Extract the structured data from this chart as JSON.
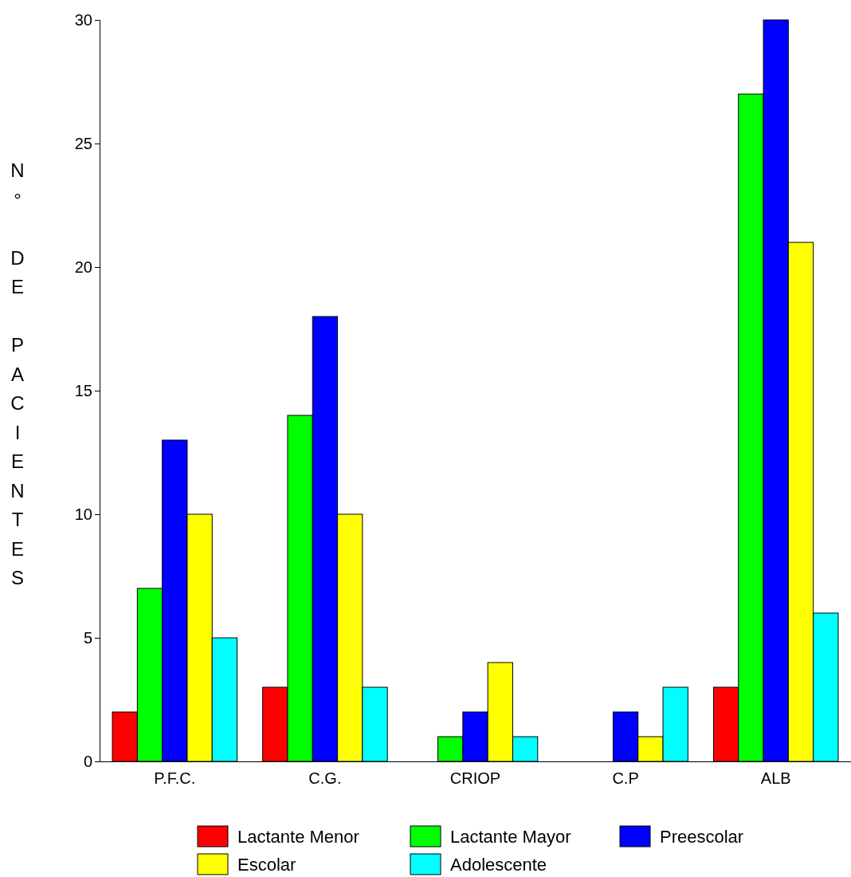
{
  "chart_data": {
    "type": "bar",
    "ylabel": "N° DE PACIENTES",
    "categories": [
      "P.F.C.",
      "C.G.",
      "CRIOP",
      "C.P",
      "ALB"
    ],
    "series": [
      {
        "name": "Lactante Menor",
        "color": "#ff0000",
        "values": [
          2,
          3,
          0,
          0,
          3
        ]
      },
      {
        "name": "Lactante Mayor",
        "color": "#00ff00",
        "values": [
          7,
          14,
          1,
          0,
          27
        ]
      },
      {
        "name": "Preescolar",
        "color": "#0000ff",
        "values": [
          13,
          18,
          2,
          2,
          30
        ]
      },
      {
        "name": "Escolar",
        "color": "#ffff00",
        "values": [
          10,
          10,
          4,
          1,
          21
        ]
      },
      {
        "name": "Adolescente",
        "color": "#00ffff",
        "values": [
          5,
          3,
          1,
          3,
          6
        ]
      }
    ],
    "ylim": [
      0,
      30
    ],
    "yticks": [
      0,
      5,
      10,
      15,
      20,
      25,
      30
    ],
    "grid": false,
    "legend": "bottom"
  }
}
